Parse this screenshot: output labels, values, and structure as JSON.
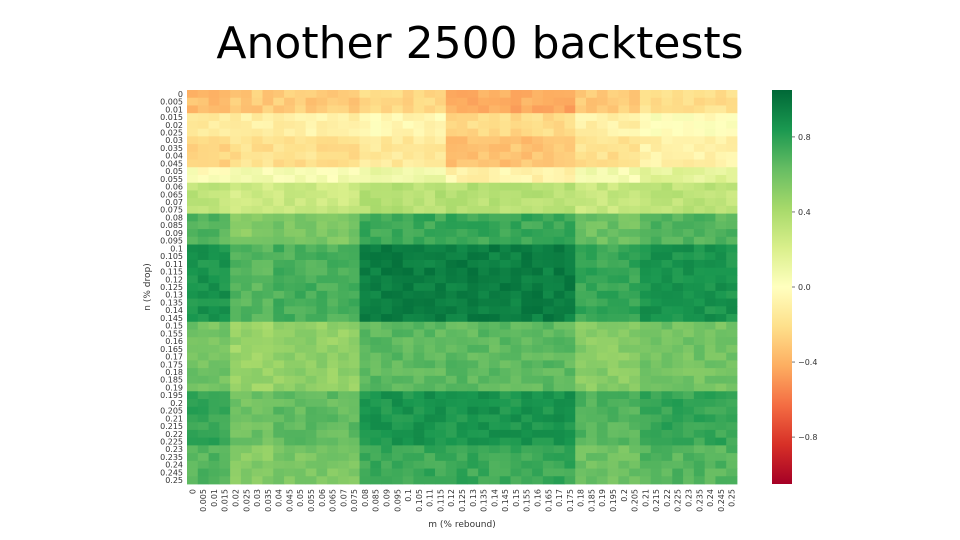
{
  "slide": {
    "title": "Another 2500 backtests"
  },
  "chart_data": {
    "type": "heatmap",
    "title": "Another 2500 backtests",
    "xlabel": "m (% rebound)",
    "ylabel": "n (% drop)",
    "x": [
      "0",
      "0.005",
      "0.01",
      "0.015",
      "0.02",
      "0.025",
      "0.03",
      "0.035",
      "0.04",
      "0.045",
      "0.05",
      "0.055",
      "0.06",
      "0.065",
      "0.07",
      "0.075",
      "0.08",
      "0.085",
      "0.09",
      "0.095",
      "0.1",
      "0.105",
      "0.11",
      "0.115",
      "0.12",
      "0.125",
      "0.13",
      "0.135",
      "0.14",
      "0.145",
      "0.15",
      "0.155",
      "0.16",
      "0.165",
      "0.17",
      "0.175",
      "0.18",
      "0.185",
      "0.19",
      "0.195",
      "0.2",
      "0.205",
      "0.21",
      "0.215",
      "0.22",
      "0.225",
      "0.23",
      "0.235",
      "0.24",
      "0.245",
      "0.25"
    ],
    "y": [
      "0",
      "0.005",
      "0.01",
      "0.015",
      "0.02",
      "0.025",
      "0.03",
      "0.035",
      "0.04",
      "0.045",
      "0.05",
      "0.055",
      "0.06",
      "0.065",
      "0.07",
      "0.075",
      "0.08",
      "0.085",
      "0.09",
      "0.095",
      "0.1",
      "0.105",
      "0.11",
      "0.115",
      "0.12",
      "0.125",
      "0.13",
      "0.135",
      "0.14",
      "0.145",
      "0.15",
      "0.155",
      "0.16",
      "0.165",
      "0.17",
      "0.175",
      "0.18",
      "0.185",
      "0.19",
      "0.195",
      "0.2",
      "0.205",
      "0.21",
      "0.215",
      "0.22",
      "0.225",
      "0.23",
      "0.235",
      "0.24",
      "0.245",
      "0.25"
    ],
    "x_groups": [
      {
        "upto": "0.015",
        "band": -0.1,
        "tail": 0.9
      },
      {
        "upto": "0.035",
        "band": -0.05,
        "tail": 0.7
      },
      {
        "upto": "0.075",
        "band": -0.05,
        "tail": 0.75
      },
      {
        "upto": "0.115",
        "band": 0.0,
        "tail": 1.0
      },
      {
        "upto": "0.175",
        "band": -0.18,
        "tail": 1.0
      },
      {
        "upto": "0.205",
        "band": -0.05,
        "tail": 0.8
      },
      {
        "upto": "0.25",
        "band": 0.05,
        "tail": 0.9
      }
    ],
    "y_groups": [
      {
        "upto": "0.01",
        "base": -0.25
      },
      {
        "upto": "0.025",
        "base": -0.05
      },
      {
        "upto": "0.045",
        "base": -0.15
      },
      {
        "upto": "0.055",
        "base": 0.1
      },
      {
        "upto": "0.075",
        "base": 0.35
      },
      {
        "upto": "0.095",
        "base": 0.75
      },
      {
        "upto": "0.145",
        "base": 0.95
      },
      {
        "upto": "0.19",
        "base": 0.65
      },
      {
        "upto": "0.225",
        "base": 0.85
      },
      {
        "upto": "0.25",
        "base": 0.75
      }
    ],
    "value_range": [
      -1.05,
      1.05
    ],
    "colorbar": {
      "ticks": [
        0.8,
        0.4,
        0.0,
        -0.4,
        -0.8
      ],
      "labels": [
        "0.8",
        "0.4",
        "0.0",
        "−0.4",
        "−0.8"
      ]
    },
    "colormap": "RdYlGn",
    "colormap_stops": [
      "#a50026",
      "#d73027",
      "#f46d43",
      "#fdae61",
      "#fee08b",
      "#ffffbf",
      "#d9ef8b",
      "#a6d96a",
      "#66bd63",
      "#1a9850",
      "#006837"
    ],
    "grid": false,
    "legend": "colorbar-right"
  }
}
